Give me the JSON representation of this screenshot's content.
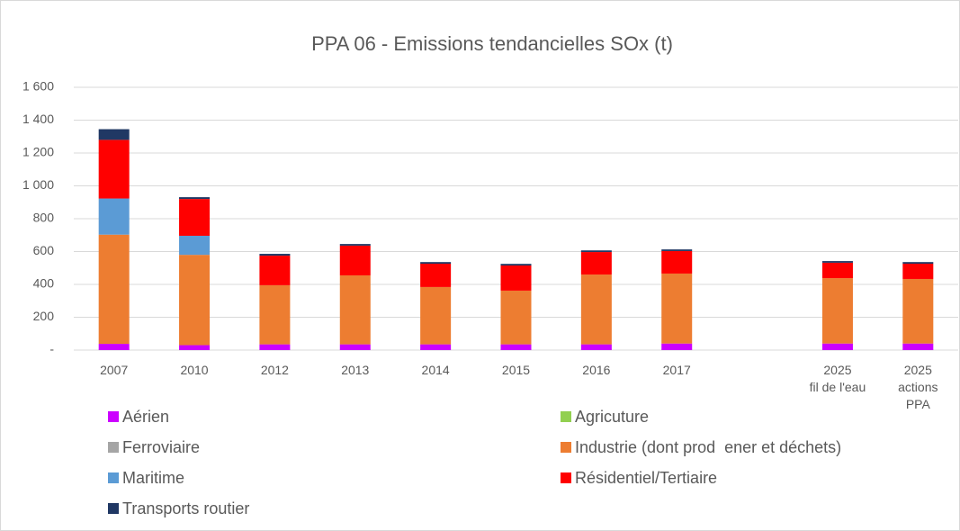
{
  "chart_data": {
    "type": "stacked_bar",
    "title": "PPA 06 - Emissions tendancielles SOx (t)",
    "categories": [
      "2007",
      "2010",
      "2012",
      "2013",
      "2014",
      "2015",
      "2016",
      "2017",
      null,
      "2025\nfil de l'eau",
      "2025\nactions\nPPA"
    ],
    "series": [
      {
        "name": "Aérien",
        "color": "#cc00ff",
        "values": [
          38,
          30,
          35,
          35,
          35,
          35,
          35,
          40,
          null,
          40,
          40
        ]
      },
      {
        "name": "Agricuture",
        "color": "#92d050",
        "values": [
          0,
          0,
          0,
          0,
          0,
          0,
          0,
          0,
          null,
          0,
          0
        ]
      },
      {
        "name": "Ferroviaire",
        "color": "#a5a5a5",
        "values": [
          0,
          0,
          0,
          0,
          0,
          0,
          0,
          0,
          null,
          0,
          0
        ]
      },
      {
        "name": "Industrie (dont prod  ener et déchets)",
        "color": "#ed7d31",
        "values": [
          665,
          550,
          360,
          420,
          349,
          327,
          425,
          426,
          null,
          398,
          393
        ]
      },
      {
        "name": "Maritime",
        "color": "#5b9bd5",
        "values": [
          220,
          116,
          0,
          0,
          0,
          0,
          0,
          0,
          null,
          0,
          0
        ]
      },
      {
        "name": "Résidentiel/Tertiaire",
        "color": "#ff0000",
        "values": [
          357,
          224,
          180,
          181,
          142,
          153,
          137,
          137,
          null,
          94,
          93
        ]
      },
      {
        "name": "Transports routier",
        "color": "#203864",
        "values": [
          65,
          11,
          11,
          10,
          10,
          10,
          10,
          10,
          null,
          10,
          10
        ]
      }
    ],
    "ylim": [
      0,
      1600
    ],
    "yticks": [
      {
        "value": 0,
        "label": "-"
      },
      200,
      400,
      600,
      800,
      {
        "value": 1000,
        "label": "1 000"
      },
      {
        "value": 1200,
        "label": "1 200"
      },
      {
        "value": 1400,
        "label": "1 400"
      },
      {
        "value": 1600,
        "label": "1 600"
      }
    ],
    "grid": true
  }
}
